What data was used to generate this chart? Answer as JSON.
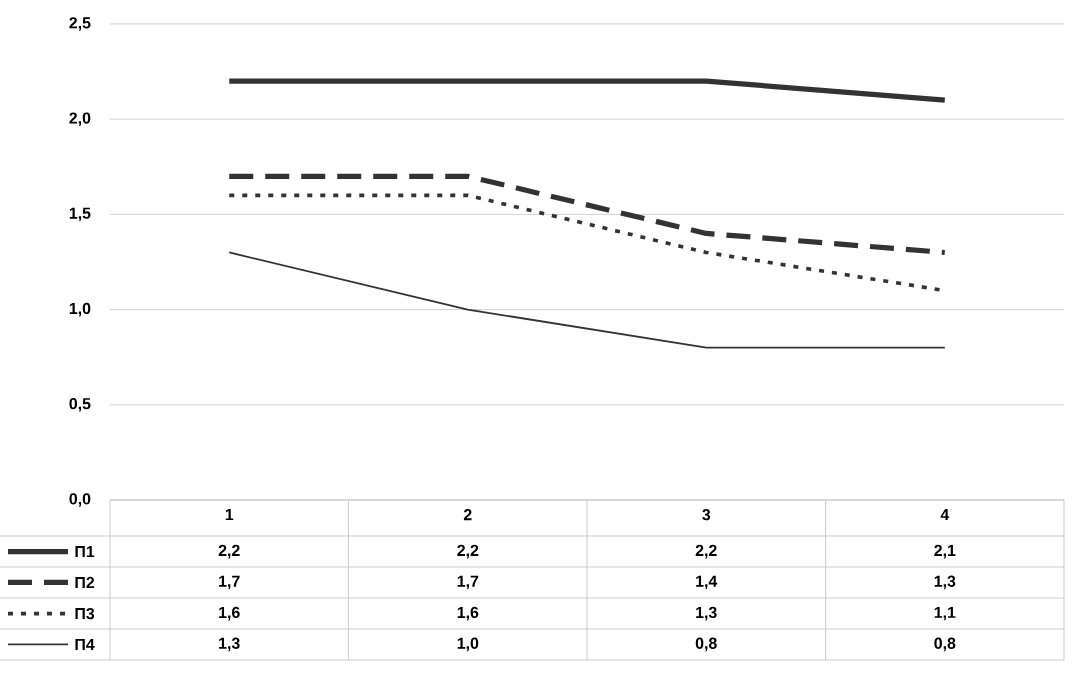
{
  "chart_data": {
    "type": "line",
    "categories": [
      "1",
      "2",
      "3",
      "4"
    ],
    "series": [
      {
        "name": "П1",
        "color": "#333333",
        "line_style": "solid",
        "values": [
          2.2,
          2.2,
          2.2,
          2.1
        ],
        "value_labels": [
          "2,2",
          "2,2",
          "2,2",
          "2,1"
        ]
      },
      {
        "name": "П2",
        "color": "#333333",
        "line_style": "dashed",
        "values": [
          1.7,
          1.7,
          1.4,
          1.3
        ],
        "value_labels": [
          "1,7",
          "1,7",
          "1,4",
          "1,3"
        ]
      },
      {
        "name": "П3",
        "color": "#333333",
        "line_style": "dotted",
        "values": [
          1.6,
          1.6,
          1.3,
          1.1
        ],
        "value_labels": [
          "1,6",
          "1,6",
          "1,3",
          "1,1"
        ]
      },
      {
        "name": "П4",
        "color": "#333333",
        "line_style": "solid",
        "values": [
          1.3,
          1.0,
          0.8,
          0.8
        ],
        "value_labels": [
          "1,3",
          "1,0",
          "0,8",
          "0,8"
        ]
      }
    ],
    "ylim": [
      0,
      2.5
    ],
    "yticks": [
      {
        "value": 0,
        "label": "0,0"
      },
      {
        "value": 0.5,
        "label": "0,5"
      },
      {
        "value": 1,
        "label": "1,0"
      },
      {
        "value": 1.5,
        "label": "1,5"
      },
      {
        "value": 2,
        "label": "2,0"
      },
      {
        "value": 2.5,
        "label": "2,5"
      }
    ],
    "grid": "y",
    "legend": "bottom"
  }
}
